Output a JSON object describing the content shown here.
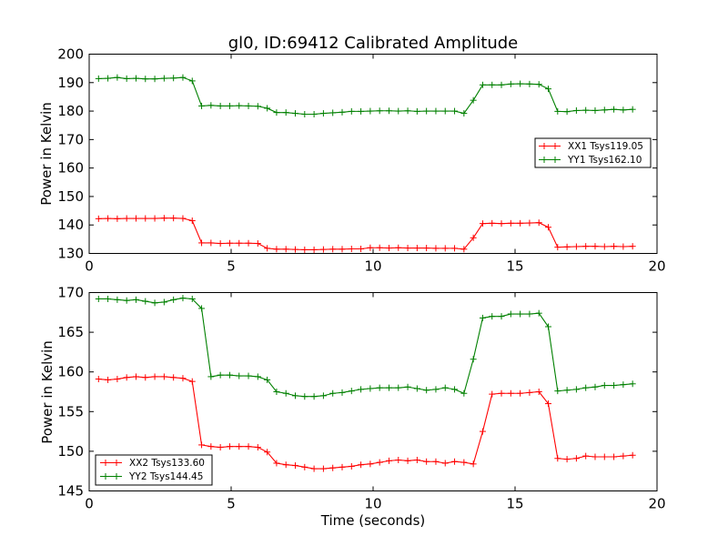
{
  "chart_data": [
    {
      "type": "line",
      "title": "gl0, ID:69412 Calibrated Amplitude",
      "xlabel": "",
      "ylabel": "Power in Kelvin",
      "xlim": [
        0,
        20
      ],
      "ylim": [
        130,
        200
      ],
      "xticks": [
        0,
        5,
        10,
        15,
        20
      ],
      "yticks": [
        130,
        140,
        150,
        160,
        170,
        180,
        190,
        200
      ],
      "xtick_labels": [
        "0",
        "5",
        "10",
        "15",
        "20"
      ],
      "ytick_labels": [
        "130",
        "140",
        "150",
        "160",
        "170",
        "180",
        "190",
        "200"
      ],
      "grid": false,
      "legend_position": "center-right",
      "x": [
        0.33,
        0.66,
        0.99,
        1.32,
        1.65,
        1.98,
        2.31,
        2.64,
        2.97,
        3.3,
        3.63,
        3.96,
        4.29,
        4.62,
        4.95,
        5.28,
        5.61,
        5.94,
        6.27,
        6.6,
        6.93,
        7.26,
        7.59,
        7.92,
        8.25,
        8.58,
        8.91,
        9.24,
        9.57,
        9.9,
        10.23,
        10.56,
        10.89,
        11.22,
        11.55,
        11.88,
        12.21,
        12.54,
        12.87,
        13.2,
        13.53,
        13.86,
        14.19,
        14.52,
        14.85,
        15.18,
        15.51,
        15.84,
        16.17,
        16.5,
        16.83,
        17.16,
        17.49,
        17.82,
        18.15,
        18.48,
        18.81,
        19.14
      ],
      "series": [
        {
          "name": "XX1 Tsys119.05",
          "color": "#ff0000",
          "values": [
            142.2,
            142.3,
            142.2,
            142.3,
            142.3,
            142.3,
            142.3,
            142.4,
            142.4,
            142.3,
            141.5,
            133.7,
            133.7,
            133.5,
            133.6,
            133.6,
            133.6,
            133.5,
            131.8,
            131.5,
            131.5,
            131.4,
            131.3,
            131.3,
            131.4,
            131.5,
            131.5,
            131.6,
            131.6,
            132.0,
            132.0,
            131.9,
            132.0,
            131.9,
            131.9,
            131.9,
            131.8,
            131.8,
            131.8,
            131.5,
            135.5,
            140.5,
            140.6,
            140.5,
            140.6,
            140.6,
            140.7,
            140.8,
            139.2,
            132.2,
            132.3,
            132.4,
            132.5,
            132.5,
            132.4,
            132.5,
            132.4,
            132.5
          ]
        },
        {
          "name": "YY1 Tsys162.10",
          "color": "#008000",
          "values": [
            191.4,
            191.5,
            191.8,
            191.4,
            191.5,
            191.3,
            191.3,
            191.5,
            191.6,
            191.8,
            190.6,
            181.8,
            182.0,
            181.8,
            181.8,
            181.9,
            181.8,
            181.7,
            181.0,
            179.5,
            179.5,
            179.2,
            178.9,
            178.9,
            179.2,
            179.4,
            179.6,
            179.9,
            179.9,
            180.0,
            180.1,
            180.1,
            180.0,
            180.1,
            179.9,
            180.0,
            180.0,
            180.0,
            180.0,
            179.2,
            183.8,
            189.2,
            189.2,
            189.2,
            189.5,
            189.6,
            189.5,
            189.4,
            187.8,
            179.9,
            179.8,
            180.2,
            180.3,
            180.2,
            180.4,
            180.6,
            180.4,
            180.6
          ]
        }
      ]
    },
    {
      "type": "line",
      "title": "",
      "xlabel": "Time (seconds)",
      "ylabel": "Power in Kelvin",
      "xlim": [
        0,
        20
      ],
      "ylim": [
        145,
        170
      ],
      "xticks": [
        0,
        5,
        10,
        15,
        20
      ],
      "yticks": [
        145,
        150,
        155,
        160,
        165,
        170
      ],
      "xtick_labels": [
        "0",
        "5",
        "10",
        "15",
        "20"
      ],
      "ytick_labels": [
        "145",
        "150",
        "155",
        "160",
        "165",
        "170"
      ],
      "grid": false,
      "legend_position": "lower-left",
      "x": [
        0.33,
        0.66,
        0.99,
        1.32,
        1.65,
        1.98,
        2.31,
        2.64,
        2.97,
        3.3,
        3.63,
        3.96,
        4.29,
        4.62,
        4.95,
        5.28,
        5.61,
        5.94,
        6.27,
        6.6,
        6.93,
        7.26,
        7.59,
        7.92,
        8.25,
        8.58,
        8.91,
        9.24,
        9.57,
        9.9,
        10.23,
        10.56,
        10.89,
        11.22,
        11.55,
        11.88,
        12.21,
        12.54,
        12.87,
        13.2,
        13.53,
        13.86,
        14.19,
        14.52,
        14.85,
        15.18,
        15.51,
        15.84,
        16.17,
        16.5,
        16.83,
        17.16,
        17.49,
        17.82,
        18.15,
        18.48,
        18.81,
        19.14
      ],
      "series": [
        {
          "name": "XX2 Tsys133.60",
          "color": "#ff0000",
          "values": [
            159.1,
            159.0,
            159.1,
            159.3,
            159.4,
            159.3,
            159.4,
            159.4,
            159.3,
            159.2,
            158.8,
            150.8,
            150.6,
            150.5,
            150.6,
            150.6,
            150.6,
            150.5,
            149.9,
            148.5,
            148.3,
            148.2,
            148.0,
            147.8,
            147.8,
            147.9,
            148.0,
            148.1,
            148.3,
            148.4,
            148.6,
            148.8,
            148.9,
            148.8,
            148.9,
            148.7,
            148.7,
            148.5,
            148.7,
            148.6,
            148.4,
            152.5,
            157.2,
            157.3,
            157.3,
            157.3,
            157.4,
            157.5,
            156.0,
            149.1,
            149.0,
            149.1,
            149.4,
            149.3,
            149.3,
            149.3,
            149.4,
            149.5
          ]
        },
        {
          "name": "YY2 Tsys144.45",
          "color": "#008000",
          "values": [
            169.2,
            169.2,
            169.1,
            169.0,
            169.1,
            168.9,
            168.7,
            168.8,
            169.1,
            169.3,
            169.2,
            168.0,
            159.4,
            159.6,
            159.6,
            159.5,
            159.5,
            159.4,
            159.0,
            157.5,
            157.3,
            157.0,
            156.9,
            156.9,
            157.0,
            157.3,
            157.4,
            157.6,
            157.8,
            157.9,
            158.0,
            158.0,
            158.0,
            158.1,
            157.9,
            157.7,
            157.8,
            158.0,
            157.8,
            157.3,
            161.6,
            166.8,
            167.0,
            167.0,
            167.3,
            167.3,
            167.3,
            167.4,
            165.7,
            157.6,
            157.7,
            157.8,
            158.0,
            158.1,
            158.3,
            158.3,
            158.4,
            158.5
          ]
        }
      ]
    }
  ]
}
